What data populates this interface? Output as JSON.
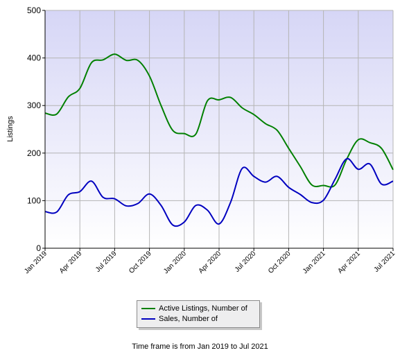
{
  "chart_data": {
    "type": "line",
    "ylabel": "Listings",
    "ylim": [
      0,
      500
    ],
    "yticks": [
      0,
      100,
      200,
      300,
      400,
      500
    ],
    "x_tick_labels": [
      "Jan 2019",
      "Apr 2019",
      "Jul 2019",
      "Oct 2019",
      "Jan 2020",
      "Apr 2020",
      "Jul 2020",
      "Oct 2020",
      "Jan 2021",
      "Apr 2021",
      "Jul 2021"
    ],
    "x": [
      "Jan 2019",
      "Feb 2019",
      "Mar 2019",
      "Apr 2019",
      "May 2019",
      "Jun 2019",
      "Jul 2019",
      "Aug 2019",
      "Sep 2019",
      "Oct 2019",
      "Nov 2019",
      "Dec 2019",
      "Jan 2020",
      "Feb 2020",
      "Mar 2020",
      "Apr 2020",
      "May 2020",
      "Jun 2020",
      "Jul 2020",
      "Aug 2020",
      "Sep 2020",
      "Oct 2020",
      "Nov 2020",
      "Dec 2020",
      "Jan 2021",
      "Feb 2021",
      "Mar 2021",
      "Apr 2021",
      "May 2021",
      "Jun 2021",
      "Jul 2021"
    ],
    "series": [
      {
        "name": "Active Listings, Number of",
        "color": "#008000",
        "values": [
          284,
          282,
          318,
          336,
          390,
          396,
          408,
          395,
          395,
          362,
          300,
          248,
          241,
          240,
          310,
          312,
          317,
          295,
          281,
          262,
          248,
          210,
          172,
          133,
          132,
          133,
          187,
          228,
          222,
          210,
          165
        ]
      },
      {
        "name": "Sales, Number of",
        "color": "#0000c0",
        "values": [
          77,
          76,
          112,
          119,
          141,
          107,
          104,
          89,
          94,
          114,
          90,
          49,
          55,
          90,
          80,
          51,
          97,
          168,
          151,
          139,
          151,
          128,
          113,
          96,
          101,
          145,
          188,
          166,
          177,
          135,
          141
        ]
      }
    ],
    "grid": true,
    "legend_position": "bottom"
  },
  "footnote": "Time frame is from Jan 2019 to Jul 2021"
}
